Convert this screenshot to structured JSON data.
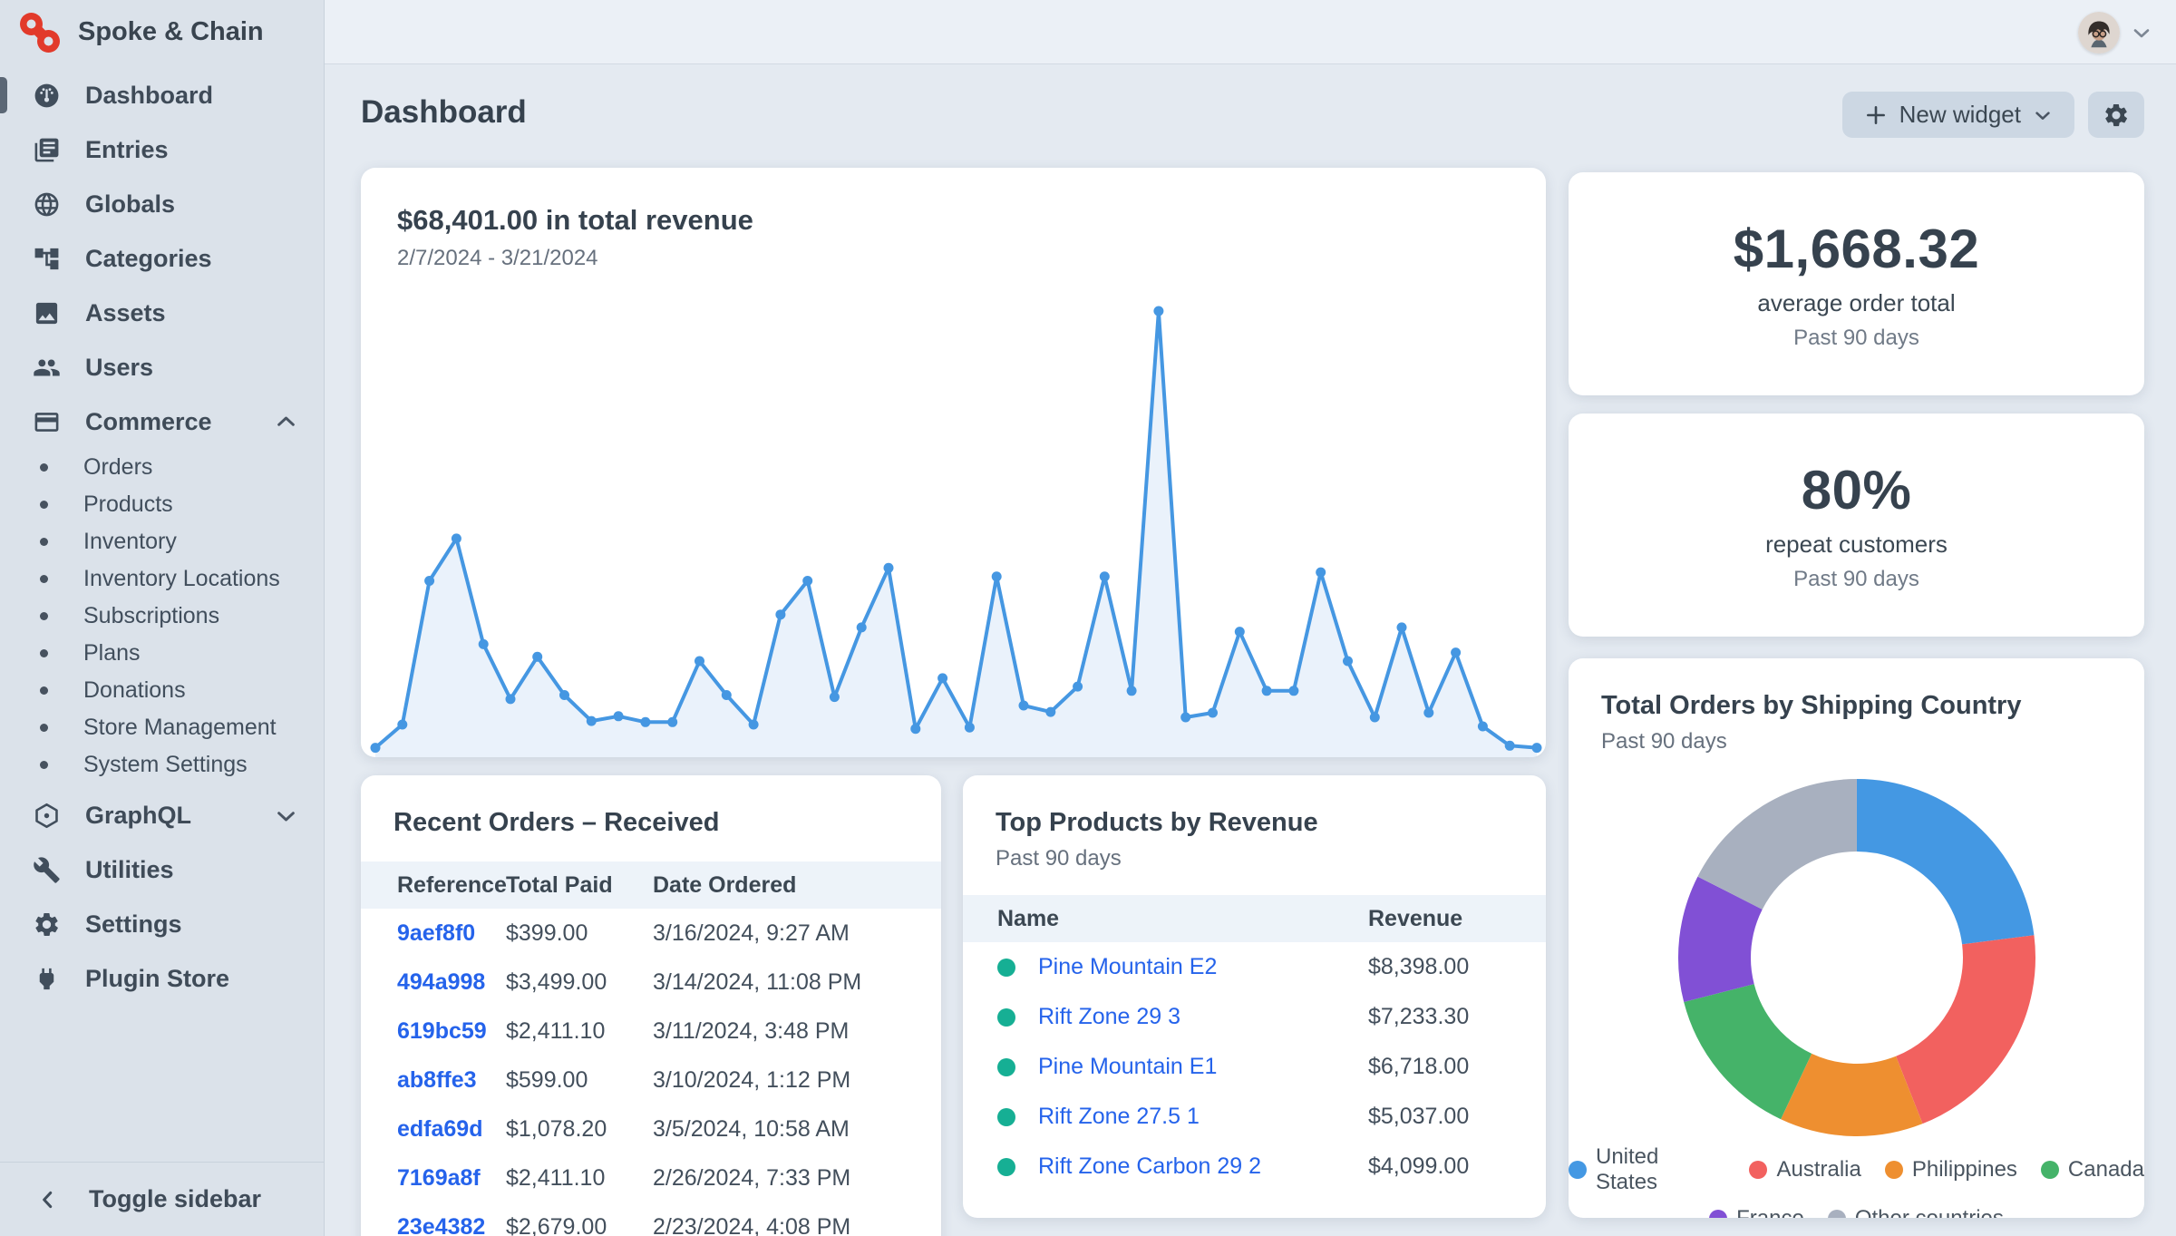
{
  "app": {
    "brand": "Spoke & Chain"
  },
  "colors": {
    "accent_red": "#e23a2b",
    "link": "#2563eb",
    "status_teal": "#16af94",
    "line_chart": "#4597e2",
    "line_chart_fill": "#eaf2fb",
    "sidebar_bg": "#dbe2ea",
    "card_bg": "#ffffff"
  },
  "sidebar": {
    "items": [
      {
        "label": "Dashboard",
        "icon": "gauge-icon",
        "active": true
      },
      {
        "label": "Entries",
        "icon": "newspaper-icon"
      },
      {
        "label": "Globals",
        "icon": "globe-icon"
      },
      {
        "label": "Categories",
        "icon": "sitemap-icon"
      },
      {
        "label": "Assets",
        "icon": "image-icon"
      },
      {
        "label": "Users",
        "icon": "users-icon"
      },
      {
        "label": "Commerce",
        "icon": "credit-card-icon",
        "chevron": "up",
        "children": [
          "Orders",
          "Products",
          "Inventory",
          "Inventory Locations",
          "Subscriptions",
          "Plans",
          "Donations",
          "Store Management",
          "System Settings"
        ]
      },
      {
        "label": "GraphQL",
        "icon": "graphql-icon",
        "chevron": "down"
      },
      {
        "label": "Utilities",
        "icon": "wrench-icon"
      },
      {
        "label": "Settings",
        "icon": "gear-icon"
      },
      {
        "label": "Plugin Store",
        "icon": "plug-icon"
      }
    ],
    "toggle_label": "Toggle sidebar"
  },
  "toolbar": {
    "page_title": "Dashboard",
    "new_widget_label": "New widget"
  },
  "widgets": {
    "revenue": {
      "title": "$68,401.00 in total revenue",
      "subtitle": "2/7/2024 - 3/21/2024"
    },
    "avg_order": {
      "value": "$1,668.32",
      "label": "average order total",
      "period": "Past 90 days"
    },
    "repeat_customers": {
      "value": "80%",
      "label": "repeat customers",
      "period": "Past 90 days"
    },
    "orders_by_country": {
      "title": "Total Orders by Shipping Country",
      "period": "Past 90 days"
    },
    "recent_orders": {
      "title": "Recent Orders – Received",
      "columns": [
        "Reference",
        "Total Paid",
        "Date Ordered"
      ],
      "rows": [
        {
          "reference": "9aef8f0",
          "total_paid": "$399.00",
          "date_ordered": "3/16/2024, 9:27 AM"
        },
        {
          "reference": "494a998",
          "total_paid": "$3,499.00",
          "date_ordered": "3/14/2024, 11:08 PM"
        },
        {
          "reference": "619bc59",
          "total_paid": "$2,411.10",
          "date_ordered": "3/11/2024, 3:48 PM"
        },
        {
          "reference": "ab8ffe3",
          "total_paid": "$599.00",
          "date_ordered": "3/10/2024, 1:12 PM"
        },
        {
          "reference": "edfa69d",
          "total_paid": "$1,078.20",
          "date_ordered": "3/5/2024, 10:58 AM"
        },
        {
          "reference": "7169a8f",
          "total_paid": "$2,411.10",
          "date_ordered": "2/26/2024, 7:33 PM"
        },
        {
          "reference": "23e4382",
          "total_paid": "$2,679.00",
          "date_ordered": "2/23/2024, 4:08 PM"
        }
      ]
    },
    "top_products": {
      "title": "Top Products by Revenue",
      "period": "Past 90 days",
      "columns": [
        "Name",
        "Revenue"
      ],
      "rows": [
        {
          "name": "Pine Mountain E2",
          "revenue": "$8,398.00"
        },
        {
          "name": "Rift Zone 29 3",
          "revenue": "$7,233.30"
        },
        {
          "name": "Pine Mountain E1",
          "revenue": "$6,718.00"
        },
        {
          "name": "Rift Zone 27.5 1",
          "revenue": "$5,037.00"
        },
        {
          "name": "Rift Zone Carbon 29 2",
          "revenue": "$4,099.00"
        }
      ]
    }
  },
  "chart_data": [
    {
      "type": "area",
      "title": "$68,401.00 in total revenue",
      "subtitle": "2/7/2024 - 3/21/2024",
      "x_start": "2/7/2024",
      "x_end": "3/21/2024",
      "x_unit": "day",
      "values": [
        40,
        475,
        3160,
        3950,
        1975,
        950,
        1740,
        1025,
        540,
        630,
        520,
        520,
        1660,
        1025,
        475,
        2530,
        3160,
        990,
        2290,
        3400,
        395,
        1340,
        420,
        3240,
        830,
        710,
        1185,
        3240,
        1105,
        8201,
        610,
        695,
        2210,
        1105,
        1105,
        3320,
        1660,
        610,
        2290,
        695,
        1820,
        440,
        80,
        40
      ],
      "ylim": [
        0,
        8400
      ],
      "grid": false,
      "axes_visible": false,
      "color": "#4597e2",
      "fill": "#eaf2fb",
      "legend_position": "none"
    },
    {
      "type": "pie",
      "donut": true,
      "title": "Total Orders by Shipping Country",
      "subtitle": "Past 90 days",
      "legend_position": "bottom",
      "slices": [
        {
          "label": "United States",
          "pct": 23.0,
          "color": "#4498e3"
        },
        {
          "label": "Australia",
          "pct": 21.0,
          "color": "#f2615f"
        },
        {
          "label": "Philippines",
          "pct": 13.0,
          "color": "#ee8f30"
        },
        {
          "label": "Canada",
          "pct": 14.0,
          "color": "#45b369"
        },
        {
          "label": "France",
          "pct": 11.5,
          "color": "#8150d5"
        },
        {
          "label": "Other countries",
          "pct": 17.5,
          "color": "#a8b0bf"
        }
      ]
    }
  ]
}
